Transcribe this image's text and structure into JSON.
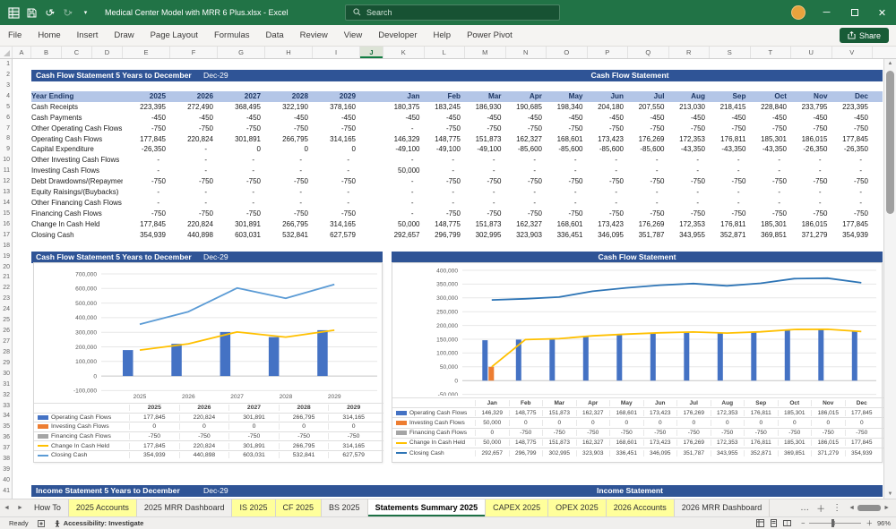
{
  "title_bar": {
    "title": "Medical Center Model with MRR 6 Plus.xlsx  -  Excel",
    "search_placeholder": "Search"
  },
  "ribbon": {
    "tabs": [
      "File",
      "Home",
      "Insert",
      "Draw",
      "Page Layout",
      "Formulas",
      "Data",
      "Review",
      "View",
      "Developer",
      "Help",
      "Power Pivot"
    ],
    "share_label": "Share"
  },
  "grid": {
    "columns": [
      "A",
      "B",
      "C",
      "D",
      "E",
      "F",
      "G",
      "H",
      "I",
      "J",
      "K",
      "L",
      "M",
      "N",
      "O",
      "P",
      "Q",
      "R",
      "S",
      "T",
      "U",
      "V"
    ],
    "selected_column": "J",
    "row_count": 41
  },
  "bands": {
    "table_header": {
      "title": "Cash Flow Statement 5 Years to December",
      "date": "Dec-29",
      "right_title": "Cash Flow Statement"
    },
    "chart_header": {
      "title": "Cash Flow Statement 5 Years to December",
      "date": "Dec-29",
      "right_title": "Cash Flow Statement"
    },
    "income_header": {
      "title": "Income Statement 5 Years to December",
      "date": "Dec-29",
      "right_title": "Income Statement"
    }
  },
  "cashflow_table": {
    "row_header": "Year Ending",
    "years": [
      "2025",
      "2026",
      "2027",
      "2028",
      "2029"
    ],
    "months": [
      "Jan",
      "Feb",
      "Mar",
      "Apr",
      "May",
      "Jun",
      "Jul",
      "Aug",
      "Sep",
      "Oct",
      "Nov",
      "Dec"
    ],
    "rows": [
      {
        "label": "Cash Receipts",
        "years": [
          "223,395",
          "272,490",
          "368,495",
          "322,190",
          "378,160"
        ],
        "months": [
          "180,375",
          "183,245",
          "186,930",
          "190,685",
          "198,340",
          "204,180",
          "207,550",
          "213,030",
          "218,415",
          "228,840",
          "233,795",
          "223,395"
        ]
      },
      {
        "label": "Cash Payments",
        "years": [
          "-450",
          "-450",
          "-450",
          "-450",
          "-450"
        ],
        "months": [
          "-450",
          "-450",
          "-450",
          "-450",
          "-450",
          "-450",
          "-450",
          "-450",
          "-450",
          "-450",
          "-450",
          "-450"
        ]
      },
      {
        "label": "Other Operating Cash Flows",
        "years": [
          "-750",
          "-750",
          "-750",
          "-750",
          "-750"
        ],
        "months": [
          "-",
          "-750",
          "-750",
          "-750",
          "-750",
          "-750",
          "-750",
          "-750",
          "-750",
          "-750",
          "-750",
          "-750"
        ]
      },
      {
        "label": "Operating Cash Flows",
        "years": [
          "177,845",
          "220,824",
          "301,891",
          "266,795",
          "314,165"
        ],
        "months": [
          "146,329",
          "148,775",
          "151,873",
          "162,327",
          "168,601",
          "173,423",
          "176,269",
          "172,353",
          "176,811",
          "185,301",
          "186,015",
          "177,845"
        ]
      },
      {
        "label": "Capital Expenditure",
        "years": [
          "-26,350",
          "-",
          "0",
          "0",
          "0"
        ],
        "months": [
          "-49,100",
          "-49,100",
          "-49,100",
          "-85,600",
          "-85,600",
          "-85,600",
          "-85,600",
          "-43,350",
          "-43,350",
          "-43,350",
          "-26,350",
          "-26,350"
        ]
      },
      {
        "label": "Other Investing Cash Flows",
        "years": [
          "-",
          "-",
          "-",
          "-",
          "-"
        ],
        "months": [
          "-",
          "-",
          "-",
          "-",
          "-",
          "-",
          "-",
          "-",
          "-",
          "-",
          "-",
          "-"
        ]
      },
      {
        "label": "Investing Cash Flows",
        "years": [
          "-",
          "-",
          "-",
          "-",
          "-"
        ],
        "months": [
          "50,000",
          "-",
          "-",
          "-",
          "-",
          "-",
          "-",
          "-",
          "-",
          "-",
          "-",
          "-"
        ]
      },
      {
        "label": "Debt Drawdowns/(Repayments",
        "years": [
          "-750",
          "-750",
          "-750",
          "-750",
          "-750"
        ],
        "months": [
          "-",
          "-750",
          "-750",
          "-750",
          "-750",
          "-750",
          "-750",
          "-750",
          "-750",
          "-750",
          "-750",
          "-750"
        ]
      },
      {
        "label": "Equity Raisings/(Buybacks)",
        "years": [
          "-",
          "-",
          "-",
          "-",
          "-"
        ],
        "months": [
          "-",
          "-",
          "-",
          "-",
          "-",
          "-",
          "-",
          "-",
          "-",
          "-",
          "-",
          "-"
        ]
      },
      {
        "label": "Other Financing Cash Flows",
        "years": [
          "-",
          "-",
          "-",
          "-",
          "-"
        ],
        "months": [
          "-",
          "-",
          "-",
          "-",
          "-",
          "-",
          "-",
          "-",
          "-",
          "-",
          "-",
          "-"
        ]
      },
      {
        "label": "Financing Cash Flows",
        "years": [
          "-750",
          "-750",
          "-750",
          "-750",
          "-750"
        ],
        "months": [
          "-",
          "-750",
          "-750",
          "-750",
          "-750",
          "-750",
          "-750",
          "-750",
          "-750",
          "-750",
          "-750",
          "-750"
        ]
      },
      {
        "label": "Change In Cash Held",
        "years": [
          "177,845",
          "220,824",
          "301,891",
          "266,795",
          "314,165"
        ],
        "months": [
          "50,000",
          "148,775",
          "151,873",
          "162,327",
          "168,601",
          "173,423",
          "176,269",
          "172,353",
          "176,811",
          "185,301",
          "186,015",
          "177,845"
        ]
      },
      {
        "label": "Closing Cash",
        "years": [
          "354,939",
          "440,898",
          "603,031",
          "532,841",
          "627,579"
        ],
        "months": [
          "292,657",
          "296,799",
          "302,995",
          "323,903",
          "336,451",
          "346,095",
          "351,787",
          "343,955",
          "352,871",
          "369,851",
          "371,279",
          "354,939"
        ]
      }
    ]
  },
  "chart_data": [
    {
      "name": "annual-cashflow-chart",
      "type": "combo",
      "categories": [
        "2025",
        "2026",
        "2027",
        "2028",
        "2029"
      ],
      "ymin": -100000,
      "ymax": 700000,
      "ystep": 100000,
      "grid": true,
      "legend_position": "table-below",
      "series": [
        {
          "name": "Operating Cash Flows",
          "type": "bar",
          "color": "#4472C4",
          "values": [
            177845,
            220824,
            301891,
            266795,
            314165
          ]
        },
        {
          "name": "Investing Cash Flows",
          "type": "bar",
          "color": "#ED7D31",
          "values": [
            0,
            0,
            0,
            0,
            0
          ]
        },
        {
          "name": "Financing Cash Flows",
          "type": "bar",
          "color": "#A5A5A5",
          "values": [
            -750,
            -750,
            -750,
            -750,
            -750
          ]
        },
        {
          "name": "Change In Cash Held",
          "type": "line",
          "color": "#FFC000",
          "values": [
            177845,
            220824,
            301891,
            266795,
            314165
          ]
        },
        {
          "name": "Closing Cash",
          "type": "line",
          "color": "#5B9BD5",
          "values": [
            354939,
            440898,
            603031,
            532841,
            627579
          ]
        }
      ]
    },
    {
      "name": "monthly-cashflow-chart",
      "type": "combo",
      "categories": [
        "Jan",
        "Feb",
        "Mar",
        "Apr",
        "May",
        "Jun",
        "Jul",
        "Aug",
        "Sep",
        "Oct",
        "Nov",
        "Dec"
      ],
      "ymin": -50000,
      "ymax": 400000,
      "ystep": 50000,
      "grid": true,
      "legend_position": "table-below",
      "series": [
        {
          "name": "Operating Cash Flows",
          "type": "bar",
          "color": "#4472C4",
          "values": [
            146329,
            148775,
            151873,
            162327,
            168601,
            173423,
            176269,
            172353,
            176811,
            185301,
            186015,
            177845
          ]
        },
        {
          "name": "Investing Cash Flows",
          "type": "bar",
          "color": "#ED7D31",
          "values": [
            50000,
            0,
            0,
            0,
            0,
            0,
            0,
            0,
            0,
            0,
            0,
            0
          ]
        },
        {
          "name": "Financing Cash Flows",
          "type": "bar",
          "color": "#A5A5A5",
          "values": [
            0,
            -750,
            -750,
            -750,
            -750,
            -750,
            -750,
            -750,
            -750,
            -750,
            -750,
            -750
          ]
        },
        {
          "name": "Change In Cash Held",
          "type": "line",
          "color": "#FFC000",
          "values": [
            50000,
            148775,
            151873,
            162327,
            168601,
            173423,
            176269,
            172353,
            176811,
            185301,
            186015,
            177845
          ]
        },
        {
          "name": "Closing Cash",
          "type": "line",
          "color": "#2E75B6",
          "values": [
            292657,
            296799,
            302995,
            323903,
            336451,
            346095,
            351787,
            343955,
            352871,
            369851,
            371279,
            354939
          ]
        }
      ]
    }
  ],
  "sheet_tabs": [
    {
      "label": "How To",
      "style": "plain"
    },
    {
      "label": "2025 Accounts",
      "style": "yellow"
    },
    {
      "label": "2025 MRR Dashboard",
      "style": "plain"
    },
    {
      "label": "IS 2025",
      "style": "yellow"
    },
    {
      "label": "CF 2025",
      "style": "yellow"
    },
    {
      "label": "BS 2025",
      "style": "plain"
    },
    {
      "label": "Statements Summary 2025",
      "style": "active"
    },
    {
      "label": "CAPEX 2025",
      "style": "yellow"
    },
    {
      "label": "OPEX 2025",
      "style": "yellow"
    },
    {
      "label": "2026 Accounts",
      "style": "yellow"
    },
    {
      "label": "2026 MRR Dashboard",
      "style": "plain"
    }
  ],
  "status_bar": {
    "mode": "Ready",
    "accessibility": "Accessibility: Investigate",
    "zoom_level": "96%"
  }
}
